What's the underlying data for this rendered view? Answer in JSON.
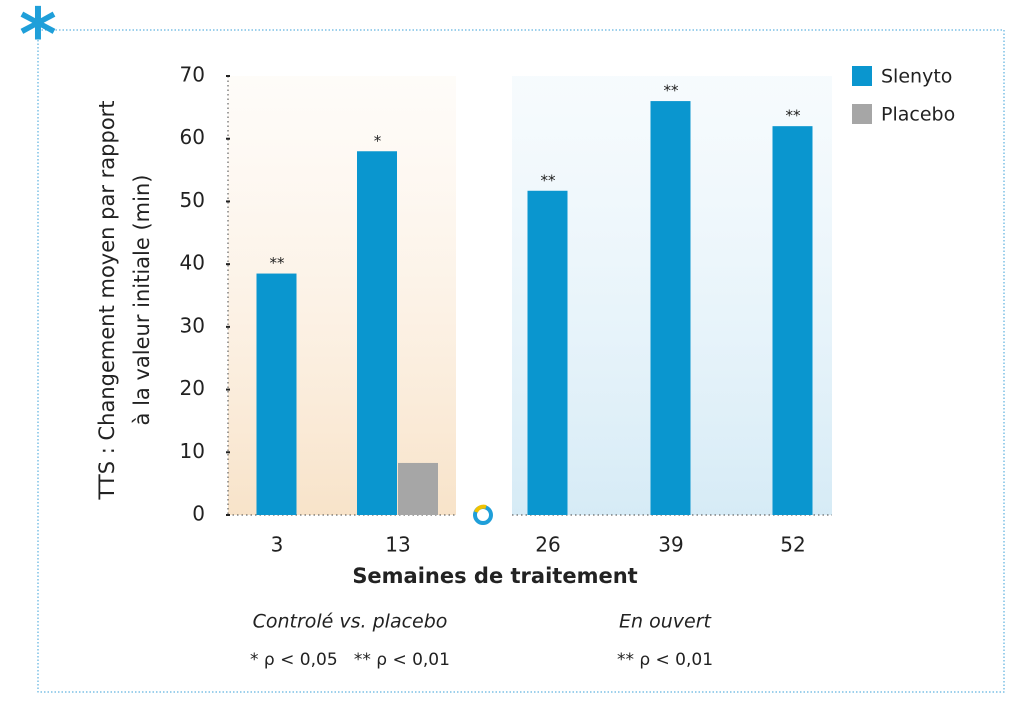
{
  "chart_data": {
    "type": "bar",
    "y_axis_label": [
      "TTS : Changement moyen par rapport",
      "à la valeur initiale (min)"
    ],
    "x_axis_label": "Semaines de traitement",
    "categories": [
      "3",
      "13",
      "26",
      "39",
      "52"
    ],
    "series": [
      {
        "name": "Slenyto",
        "color": "#0a96cf",
        "values": [
          38.5,
          58,
          51.7,
          66,
          62
        ],
        "significance": [
          "**",
          "*",
          "**",
          "**",
          "**"
        ]
      },
      {
        "name": "Placebo",
        "color": "#a6a6a6",
        "values": [
          null,
          8.3,
          null,
          null,
          null
        ]
      }
    ],
    "ylim": [
      0,
      70
    ],
    "yticks": [
      0,
      10,
      20,
      30,
      40,
      50,
      60,
      70
    ],
    "footnotes": [
      {
        "title": "Controlé vs. placebo",
        "text": "* ρ < 0,05   ** ρ < 0,01"
      },
      {
        "title": "En ouvert",
        "text": "** ρ < 0,01"
      }
    ]
  }
}
